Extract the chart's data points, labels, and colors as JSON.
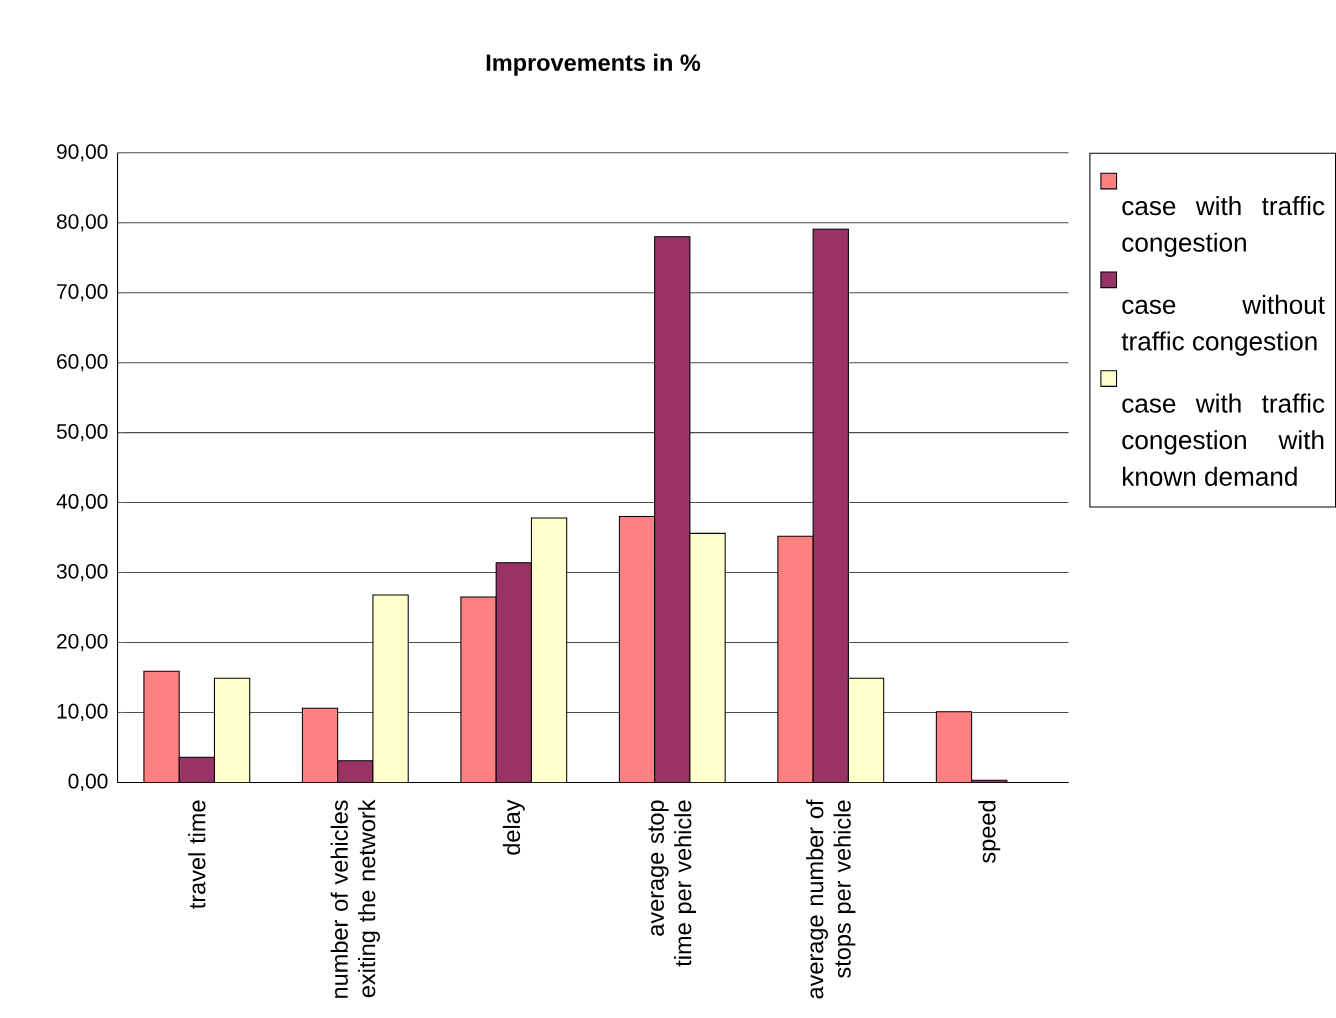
{
  "chart_data": {
    "type": "bar",
    "title": "Improvements  in %",
    "categories": [
      "travel time",
      "number of vehicles exiting the network",
      "delay",
      "average stop time per vehicle",
      "average number of stops per vehicle",
      "speed"
    ],
    "series": [
      {
        "name": "case with traffic congestion",
        "color": "#ff8080",
        "values": [
          15.9,
          10.6,
          26.5,
          38.0,
          35.2,
          10.1
        ]
      },
      {
        "name": "case without traffic congestion",
        "color": "#993366",
        "values": [
          3.6,
          3.1,
          31.4,
          78.0,
          79.1,
          0.3
        ]
      },
      {
        "name": "case with traffic congestion with known demand",
        "color": "#ffffcc",
        "values": [
          14.9,
          26.8,
          37.8,
          35.6,
          14.9,
          null
        ]
      }
    ],
    "ylim": [
      0,
      90
    ],
    "yticks": [
      {
        "value": 0,
        "label": "0,00"
      },
      {
        "value": 10,
        "label": "10,00"
      },
      {
        "value": 20,
        "label": "20,00"
      },
      {
        "value": 30,
        "label": "30,00"
      },
      {
        "value": 40,
        "label": "40,00"
      },
      {
        "value": 50,
        "label": "50,00"
      },
      {
        "value": 60,
        "label": "60,00"
      },
      {
        "value": 70,
        "label": "70,00"
      },
      {
        "value": 80,
        "label": "80,00"
      },
      {
        "value": 90,
        "label": "90,00"
      }
    ],
    "grid": "y",
    "legend": "right"
  }
}
